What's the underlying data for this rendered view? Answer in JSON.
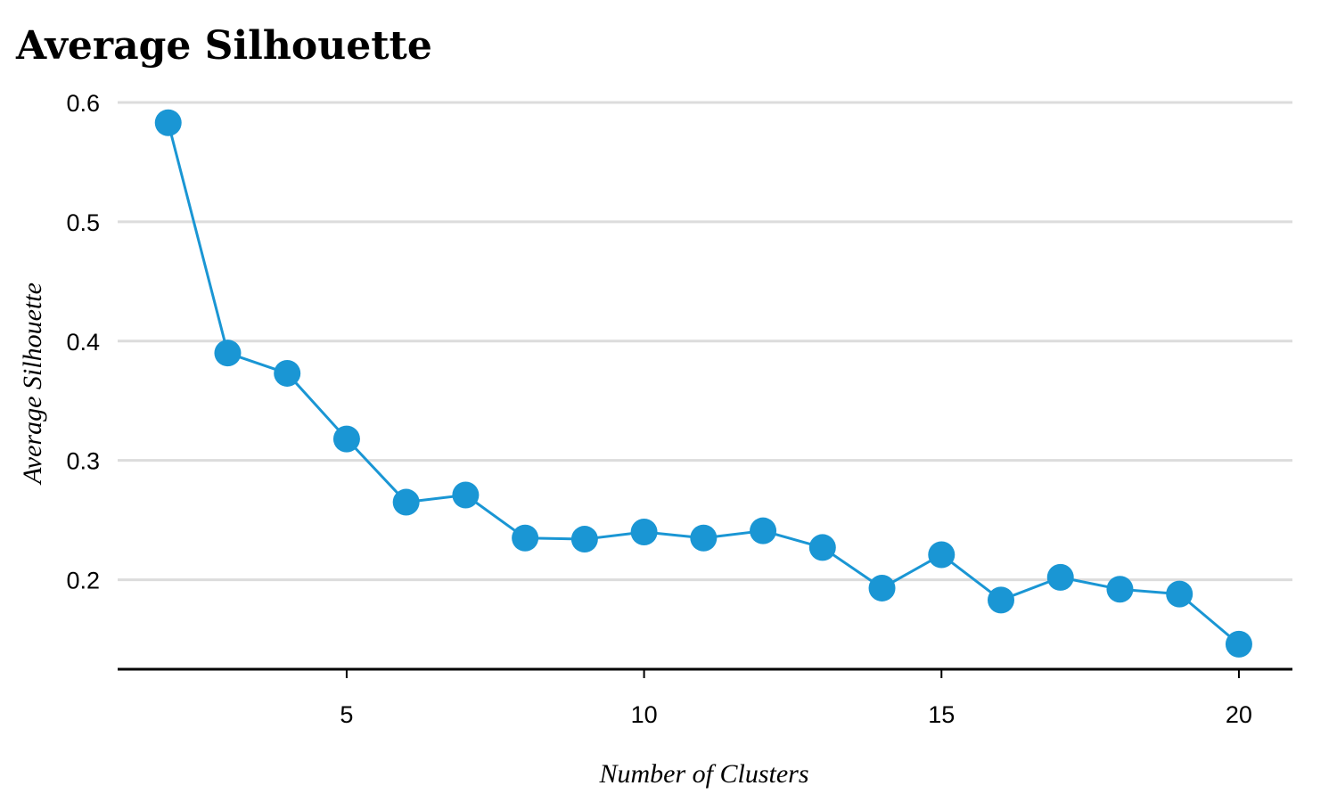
{
  "chart_data": {
    "type": "line",
    "title": "Average Silhouette",
    "xlabel": "Number of Clusters",
    "ylabel": "Average Silhouette",
    "x": [
      2,
      3,
      4,
      5,
      6,
      7,
      8,
      9,
      10,
      11,
      12,
      13,
      14,
      15,
      16,
      17,
      18,
      19,
      20
    ],
    "series": [
      {
        "values": [
          0.583,
          0.39,
          0.373,
          0.318,
          0.265,
          0.271,
          0.235,
          0.234,
          0.24,
          0.235,
          0.241,
          0.227,
          0.193,
          0.221,
          0.183,
          0.202,
          0.192,
          0.188,
          0.146
        ],
        "color": "#1a96d4"
      }
    ],
    "xlim": [
      1.15,
      20.9
    ],
    "ylim": [
      0.125,
      0.6
    ],
    "xticks": [
      5,
      10,
      15,
      20
    ],
    "yticks": [
      0.2,
      0.3,
      0.4,
      0.5,
      0.6
    ],
    "xtick_labels": [
      "5",
      "10",
      "15",
      "20"
    ],
    "ytick_labels": [
      "0.2",
      "0.3",
      "0.4",
      "0.5",
      "0.6"
    ],
    "grid": "horizontal",
    "markers": true
  }
}
